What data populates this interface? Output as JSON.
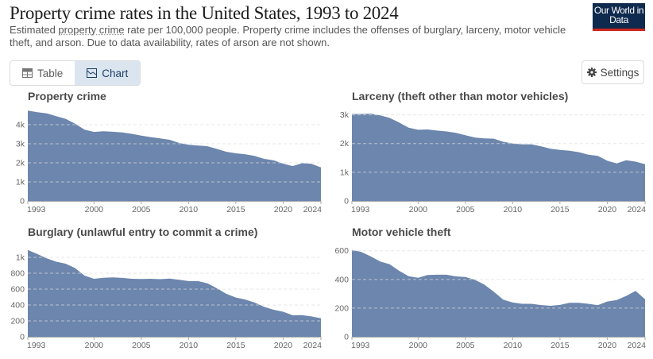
{
  "header": {
    "title": "Property crime rates in the United States, 1993 to 2024",
    "subtitle_pre": "Estimated ",
    "subtitle_link": "property crime",
    "subtitle_post": " rate per 100,000 people. Property crime includes the offenses of burglary, larceny, motor vehicle theft, and arson. Due to data availability, rates of arson are not shown.",
    "logo": "Our World in Data"
  },
  "toolbar": {
    "table_label": "Table",
    "chart_label": "Chart",
    "settings_label": "Settings",
    "active_tab": "Chart"
  },
  "colors": {
    "area": "#6c86ad",
    "logo_bg": "#0e2a4e",
    "logo_accent": "#ce261e",
    "active_tab_bg": "#dbe5f0"
  },
  "chart_data": [
    {
      "type": "area",
      "title": "Property crime",
      "x": [
        1993,
        1994,
        1995,
        1996,
        1997,
        1998,
        1999,
        2000,
        2001,
        2002,
        2003,
        2004,
        2005,
        2006,
        2007,
        2008,
        2009,
        2010,
        2011,
        2012,
        2013,
        2014,
        2015,
        2016,
        2017,
        2018,
        2019,
        2020,
        2021,
        2022,
        2023,
        2024
      ],
      "values": [
        4740,
        4660,
        4590,
        4450,
        4310,
        4050,
        3740,
        3620,
        3660,
        3630,
        3590,
        3520,
        3430,
        3350,
        3280,
        3210,
        3040,
        2950,
        2910,
        2870,
        2730,
        2580,
        2500,
        2450,
        2360,
        2210,
        2130,
        1960,
        1830,
        1980,
        1950,
        1760
      ],
      "ylim": [
        0,
        5000
      ],
      "yticks": [
        0,
        1000,
        2000,
        3000,
        4000
      ],
      "ytick_labels": [
        "0",
        "1k",
        "2k",
        "3k",
        "4k"
      ],
      "xticks": [
        1993,
        2000,
        2005,
        2010,
        2015,
        2020,
        2024
      ],
      "xtick_labels": [
        "1993",
        "2000",
        "2005",
        "2010",
        "2015",
        "2020",
        "2024"
      ],
      "grid": true
    },
    {
      "type": "area",
      "title": "Larceny (theft other than motor vehicles)",
      "x": [
        1993,
        1994,
        1995,
        1996,
        1997,
        1998,
        1999,
        2000,
        2001,
        2002,
        2003,
        2004,
        2005,
        2006,
        2007,
        2008,
        2009,
        2010,
        2011,
        2012,
        2013,
        2014,
        2015,
        2016,
        2017,
        2018,
        2019,
        2020,
        2021,
        2022,
        2023,
        2024
      ],
      "values": [
        3030,
        3030,
        3040,
        2980,
        2890,
        2730,
        2550,
        2480,
        2490,
        2450,
        2420,
        2370,
        2290,
        2210,
        2180,
        2170,
        2060,
        2000,
        1970,
        1970,
        1900,
        1820,
        1780,
        1750,
        1700,
        1610,
        1570,
        1400,
        1310,
        1420,
        1370,
        1280
      ],
      "ylim": [
        0,
        3320
      ],
      "yticks": [
        0,
        1000,
        2000,
        3000
      ],
      "ytick_labels": [
        "0",
        "1k",
        "2k",
        "3k"
      ],
      "xticks": [
        1993,
        2000,
        2005,
        2010,
        2015,
        2020,
        2024
      ],
      "xtick_labels": [
        "1993",
        "2000",
        "2005",
        "2010",
        "2015",
        "2020",
        "2024"
      ],
      "grid": true
    },
    {
      "type": "area",
      "title": "Burglary (unlawful entry to commit a crime)",
      "x": [
        1993,
        1994,
        1995,
        1996,
        1997,
        1998,
        1999,
        2000,
        2001,
        2002,
        2003,
        2004,
        2005,
        2006,
        2007,
        2008,
        2009,
        2010,
        2011,
        2012,
        2013,
        2014,
        2015,
        2016,
        2017,
        2018,
        2019,
        2020,
        2021,
        2022,
        2023,
        2024
      ],
      "values": [
        1093,
        1042,
        988,
        945,
        920,
        865,
        770,
        730,
        742,
        747,
        741,
        730,
        727,
        730,
        725,
        733,
        717,
        701,
        701,
        672,
        610,
        540,
        494,
        469,
        430,
        376,
        340,
        315,
        271,
        273,
        256,
        233
      ],
      "ylim": [
        0,
        1200
      ],
      "yticks": [
        0,
        200,
        400,
        600,
        800,
        1000
      ],
      "ytick_labels": [
        "0",
        "200",
        "400",
        "600",
        "800",
        "1k"
      ],
      "xticks": [
        1993,
        2000,
        2005,
        2010,
        2015,
        2020,
        2024
      ],
      "xtick_labels": [
        "1993",
        "2000",
        "2005",
        "2010",
        "2015",
        "2020",
        "2024"
      ],
      "grid": true
    },
    {
      "type": "area",
      "title": "Motor vehicle theft",
      "x": [
        1993,
        1994,
        1995,
        1996,
        1997,
        1998,
        1999,
        2000,
        2001,
        2002,
        2003,
        2004,
        2005,
        2006,
        2007,
        2008,
        2009,
        2010,
        2011,
        2012,
        2013,
        2014,
        2015,
        2016,
        2017,
        2018,
        2019,
        2020,
        2021,
        2022,
        2023,
        2024
      ],
      "values": [
        606,
        592,
        560,
        525,
        506,
        460,
        423,
        412,
        431,
        433,
        433,
        421,
        417,
        398,
        364,
        315,
        259,
        239,
        230,
        230,
        221,
        216,
        222,
        237,
        237,
        230,
        220,
        246,
        256,
        285,
        320,
        262
      ],
      "ylim": [
        0,
        665
      ],
      "yticks": [
        0,
        200,
        400,
        600
      ],
      "ytick_labels": [
        "0",
        "200",
        "400",
        "600"
      ],
      "xticks": [
        1993,
        2000,
        2005,
        2010,
        2015,
        2020,
        2024
      ],
      "xtick_labels": [
        "1993",
        "2000",
        "2005",
        "2010",
        "2015",
        "2020",
        "2024"
      ],
      "grid": true
    }
  ]
}
